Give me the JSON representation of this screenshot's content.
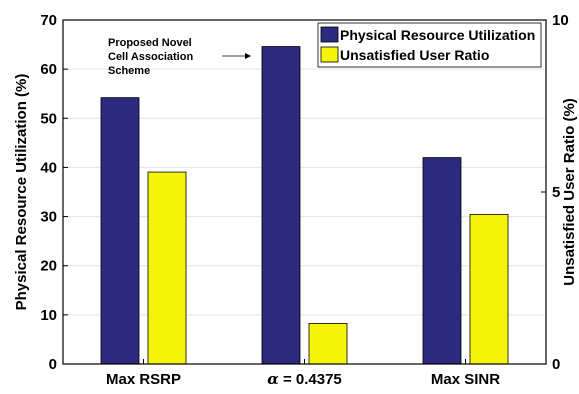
{
  "chart_data": {
    "type": "bar",
    "categories": [
      "Max RSRP",
      "α = 0.4375",
      "Max SINR"
    ],
    "series": [
      {
        "name": "Physical Resource Utilization",
        "axis": "left",
        "color": "#2b2a7e",
        "values": [
          54.2,
          64.6,
          42.0
        ]
      },
      {
        "name": "Unsatisfied User Ratio",
        "axis": "right",
        "color": "#f5f50a",
        "values": [
          5.58,
          1.18,
          4.35
        ]
      }
    ],
    "ylabel_left": "Physical Resource Utilization (%)",
    "ylabel_right": "Unsatisfied User Ratio (%)",
    "ylim_left": [
      0,
      70
    ],
    "ylim_right": [
      0,
      10
    ],
    "yticks_left": [
      "0",
      "10",
      "20",
      "30",
      "40",
      "50",
      "60",
      "70"
    ],
    "yticks_right": [
      "0",
      "5",
      "10"
    ],
    "grid": true,
    "legend": "top-right",
    "annotation": {
      "lines": [
        "Proposed Novel",
        "Cell Association",
        "Scheme"
      ],
      "target_category_index": 1
    }
  }
}
